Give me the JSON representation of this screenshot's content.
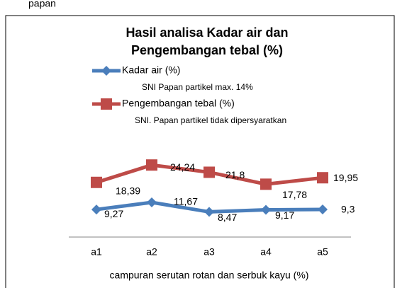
{
  "page_text": "papan",
  "chart_data": {
    "type": "line",
    "title": "Hasil analisa Kadar air dan",
    "title_line2": "Pengembangan tebal (%)",
    "x_label": "campuran serutan rotan dan serbuk kayu (%)",
    "categories": [
      "a1",
      "a2",
      "a3",
      "a4",
      "a5"
    ],
    "series": [
      {
        "name": "Kadar air (%)",
        "note": "SNI Papan partikel max. 14%",
        "color": "#4a7ebb",
        "marker": "diamond",
        "values": [
          9.27,
          11.67,
          8.47,
          9.17,
          9.3
        ],
        "value_labels": [
          "9,27",
          "11,67",
          "8,47",
          "9,17",
          "9,3"
        ]
      },
      {
        "name": "Pengembangan tebal (%)",
        "note": "SNI. Papan partikel  tidak dipersyaratkan",
        "color": "#be4b48",
        "marker": "square",
        "values": [
          18.39,
          24.24,
          21.8,
          17.78,
          19.95
        ],
        "value_labels": [
          "18,39",
          "24,24",
          "21,8",
          "17,78",
          "19,95"
        ]
      }
    ]
  }
}
